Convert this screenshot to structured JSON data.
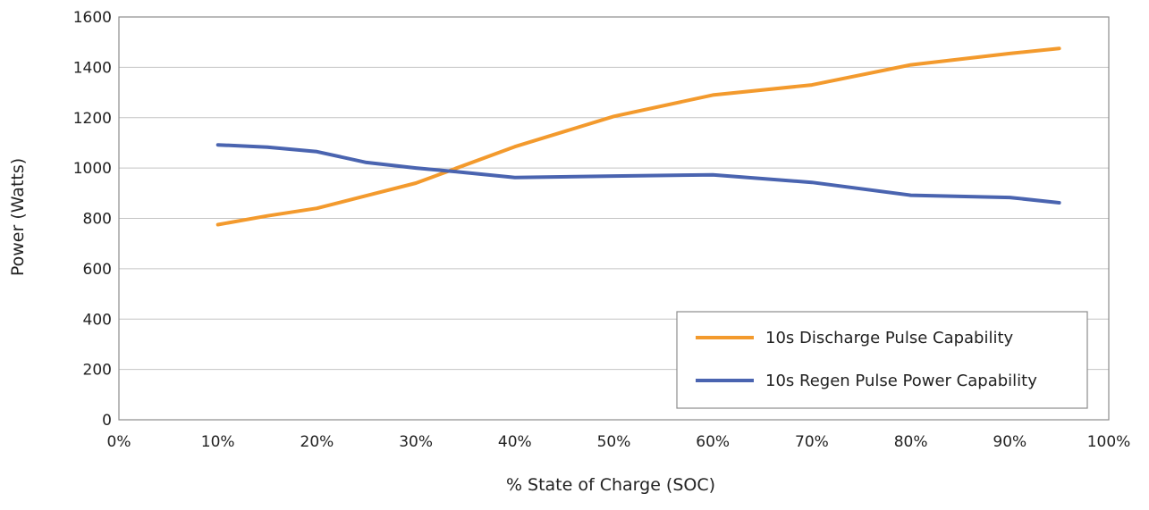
{
  "chart_data": {
    "type": "line",
    "xlabel": "% State of Charge (SOC)",
    "ylabel": "Power (Watts)",
    "xlim": [
      0,
      100
    ],
    "ylim": [
      0,
      1600
    ],
    "x_ticks": [
      "0%",
      "10%",
      "20%",
      "30%",
      "40%",
      "50%",
      "60%",
      "70%",
      "80%",
      "90%",
      "100%"
    ],
    "y_ticks": [
      "0",
      "200",
      "400",
      "600",
      "800",
      "1000",
      "1200",
      "1400",
      "1600"
    ],
    "grid": "horizontal",
    "legend_position": "bottom-right",
    "series": [
      {
        "name": "10s Discharge Pulse Capability",
        "color": "#f39a2d",
        "points": [
          [
            10,
            775
          ],
          [
            15,
            810
          ],
          [
            20,
            840
          ],
          [
            25,
            890
          ],
          [
            30,
            940
          ],
          [
            40,
            1085
          ],
          [
            50,
            1205
          ],
          [
            60,
            1290
          ],
          [
            70,
            1330
          ],
          [
            80,
            1410
          ],
          [
            90,
            1455
          ],
          [
            95,
            1475
          ]
        ]
      },
      {
        "name": "10s Regen Pulse Power Capability",
        "color": "#4a64b0",
        "points": [
          [
            10,
            1092
          ],
          [
            15,
            1083
          ],
          [
            20,
            1065
          ],
          [
            25,
            1022
          ],
          [
            30,
            1000
          ],
          [
            35,
            982
          ],
          [
            40,
            962
          ],
          [
            50,
            968
          ],
          [
            60,
            973
          ],
          [
            70,
            943
          ],
          [
            80,
            892
          ],
          [
            90,
            883
          ],
          [
            95,
            862
          ]
        ]
      }
    ]
  }
}
